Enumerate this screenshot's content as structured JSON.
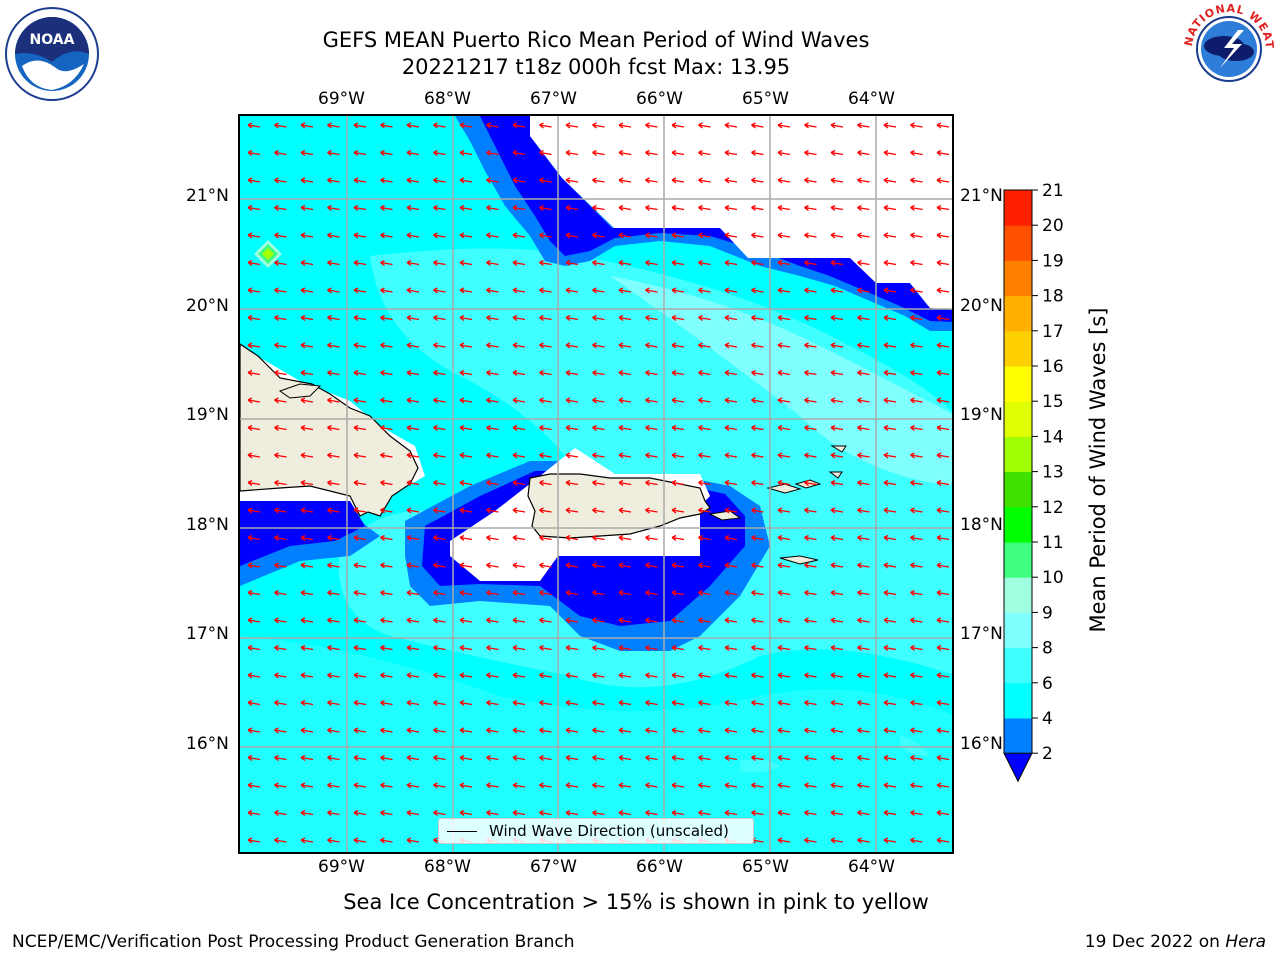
{
  "header": {
    "title_line1": "GEFS MEAN Puerto Rico Mean Period of Wind Waves",
    "title_line2": "20221217 t18z 000h fcst   Max: 13.95"
  },
  "logos": {
    "left": {
      "icon": "noaa-logo-icon",
      "text": "NOAA"
    },
    "right": {
      "icon": "nws-logo-icon",
      "text": "NATIONAL WEATHER SERVICE"
    }
  },
  "map": {
    "lon_labels": [
      "69°W",
      "68°W",
      "67°W",
      "66°W",
      "65°W",
      "64°W"
    ],
    "lat_labels": [
      "21°N",
      "20°N",
      "19°N",
      "18°N",
      "17°N",
      "16°N"
    ],
    "legend_label": "Wind Wave Direction (unscaled)",
    "arrow_color": "#ff0000",
    "land_color": "#efedde",
    "ocean_base_color": "#00ffff"
  },
  "colorbar": {
    "label": "Mean Period of Wind Waves [s]",
    "ticks": [
      "2",
      "4",
      "6",
      "8",
      "9",
      "10",
      "11",
      "12",
      "13",
      "14",
      "15",
      "16",
      "17",
      "18",
      "19",
      "20",
      "21"
    ],
    "colors": [
      "#0000ff",
      "#0080ff",
      "#00ffff",
      "#40ffff",
      "#80ffff",
      "#a0ffe0",
      "#40ff80",
      "#00ff00",
      "#40e000",
      "#a0ff00",
      "#e0ff00",
      "#ffff00",
      "#ffd000",
      "#ffb000",
      "#ff8000",
      "#ff5000",
      "#ff2000",
      "#ff0000"
    ]
  },
  "subtitle": "Sea Ice Concentration > 15% is shown in pink to yellow",
  "footer": {
    "left": "NCEP/EMC/Verification Post Processing Product Generation Branch",
    "right_date": "19 Dec 2022 on ",
    "right_machine": "Hera"
  }
}
